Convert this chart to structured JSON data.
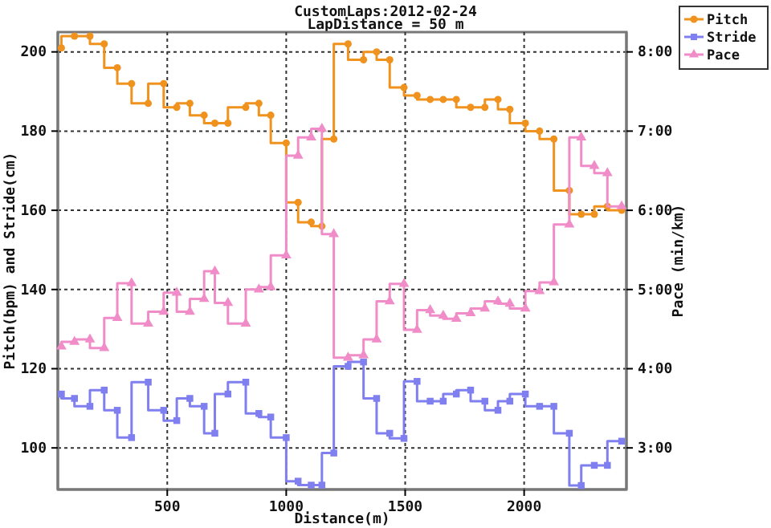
{
  "chart_data": {
    "type": "step",
    "title": "CustomLaps:2012-02-24",
    "subtitle": "LapDistance = 50 m",
    "xlabel": "Distance(m)",
    "ylabel": "Pitch(bpm) and Stride(cm)",
    "y2label": "Pace (min/km)",
    "x": [
      55,
      110,
      175,
      235,
      290,
      350,
      420,
      485,
      540,
      595,
      655,
      700,
      755,
      830,
      885,
      935,
      1000,
      1050,
      1105,
      1150,
      1200,
      1260,
      1325,
      1380,
      1435,
      1495,
      1550,
      1605,
      1660,
      1715,
      1775,
      1835,
      1890,
      1940,
      2005,
      2065,
      2125,
      2190,
      2240,
      2295,
      2350,
      2410
    ],
    "xlim": [
      40,
      2430
    ],
    "xticks": [
      500,
      1000,
      1500,
      2000
    ],
    "ylim": [
      89.5,
      205
    ],
    "yticks": [
      100,
      120,
      140,
      160,
      180,
      200
    ],
    "y2lim": [
      2.475,
      8.25
    ],
    "y2ticks": [
      {
        "value": 3,
        "label": "3:00"
      },
      {
        "value": 4,
        "label": "4:00"
      },
      {
        "value": 5,
        "label": "5:00"
      },
      {
        "value": 6,
        "label": "6:00"
      },
      {
        "value": 7,
        "label": "7:00"
      },
      {
        "value": 8,
        "label": "8:00"
      }
    ],
    "grid": true,
    "legend": "top right",
    "series": [
      {
        "name": "Pitch",
        "color": "#f0921e",
        "marker": "circle",
        "values": [
          201,
          204,
          204,
          202,
          196,
          192,
          187,
          192,
          186,
          187,
          184,
          182,
          182,
          186,
          187,
          184,
          177,
          162,
          157,
          156,
          178,
          202,
          198,
          200,
          198,
          191,
          189,
          188,
          188,
          188,
          186,
          186,
          188,
          185.5,
          182,
          180,
          178,
          165,
          159,
          159,
          161,
          160
        ]
      },
      {
        "name": "Stride",
        "color": "#7f7ff0",
        "marker": "square",
        "values": [
          113.6,
          112.5,
          110.5,
          114.6,
          109.5,
          102.6,
          116.6,
          109.5,
          106.9,
          112.5,
          110.5,
          103.7,
          113.6,
          116.6,
          108.7,
          107.8,
          102.6,
          91.6,
          90.6,
          90.6,
          98.7,
          120.6,
          121.7,
          112.5,
          103.7,
          102.4,
          116.8,
          111.8,
          111.8,
          113.6,
          114.6,
          111.8,
          109.5,
          111.8,
          113.6,
          110.5,
          110.5,
          103.7,
          90.5,
          95.6,
          95.6,
          101.7
        ]
      },
      {
        "name": "Pace",
        "color": "#f08cc8",
        "marker": "triangle",
        "axis": "y2",
        "values": [
          4.28,
          4.34,
          4.37,
          4.26,
          4.64,
          5.08,
          4.57,
          4.72,
          4.96,
          4.72,
          4.88,
          5.23,
          4.83,
          4.57,
          5.0,
          5.03,
          5.43,
          6.69,
          6.92,
          7.03,
          5.7,
          4.14,
          4.17,
          4.37,
          4.85,
          5.07,
          4.49,
          4.74,
          4.67,
          4.63,
          4.7,
          4.76,
          4.85,
          4.82,
          4.76,
          4.98,
          5.09,
          5.82,
          6.92,
          6.56,
          6.47,
          6.05
        ]
      }
    ]
  }
}
